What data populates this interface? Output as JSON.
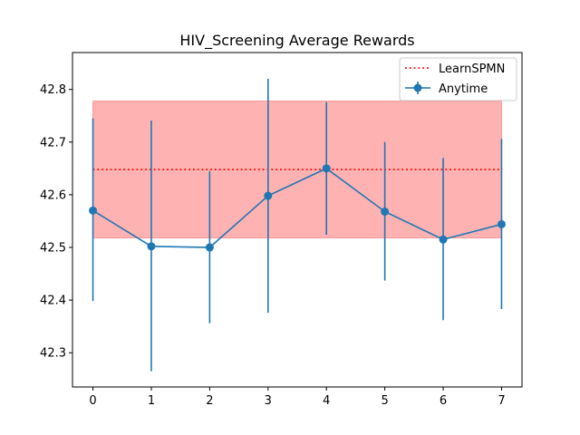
{
  "chart_data": {
    "type": "line",
    "title": "HIV_Screening Average Rewards",
    "xlabel": "",
    "ylabel": "",
    "x": [
      0,
      1,
      2,
      3,
      4,
      5,
      6,
      7
    ],
    "xlim": [
      -0.35,
      7.35
    ],
    "ylim": [
      42.235,
      42.87
    ],
    "xticks": [
      "0",
      "1",
      "2",
      "3",
      "4",
      "5",
      "6",
      "7"
    ],
    "yticks": [
      "42.3",
      "42.4",
      "42.5",
      "42.6",
      "42.7",
      "42.8"
    ],
    "grid": false,
    "legend_position": "top-right",
    "series": [
      {
        "name": "Anytime",
        "kind": "line-with-error-bars",
        "color": "#1f77b4",
        "values": [
          42.57,
          42.502,
          42.5,
          42.598,
          42.65,
          42.568,
          42.515,
          42.544
        ],
        "error_low": [
          42.398,
          42.265,
          42.356,
          42.376,
          42.524,
          42.437,
          42.362,
          42.383
        ],
        "error_high": [
          42.745,
          42.741,
          42.645,
          42.82,
          42.776,
          42.7,
          42.67,
          42.706
        ]
      },
      {
        "name": "LearnSPMN",
        "kind": "dotted-line-with-band",
        "color": "#ff0000",
        "band_color": "#ff0000",
        "value": 42.648,
        "band_low": 42.518,
        "band_high": 42.778
      }
    ]
  }
}
